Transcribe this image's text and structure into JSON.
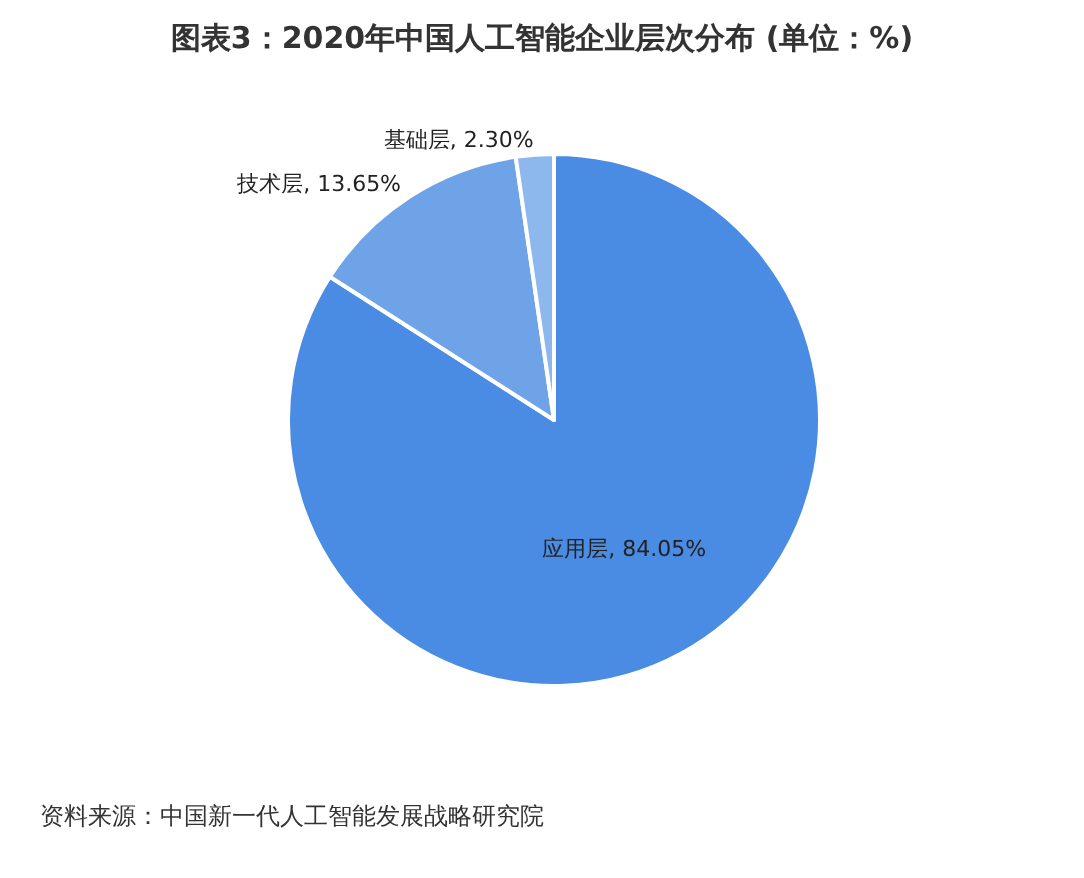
{
  "chart_data": {
    "type": "pie",
    "title": "图表3：2020年中国人工智能企业层次分布 (单位：%)",
    "categories": [
      "应用层",
      "技术层",
      "基础层"
    ],
    "values": [
      84.05,
      13.65,
      2.3
    ],
    "colors": [
      "#4a8be3",
      "#6ea3e8",
      "#8db8ee"
    ],
    "value_labels": [
      "84.05%",
      "13.65%",
      "2.30%"
    ],
    "annotations": [
      "资料来源：中国新一代人工智能发展战略研究院"
    ]
  }
}
